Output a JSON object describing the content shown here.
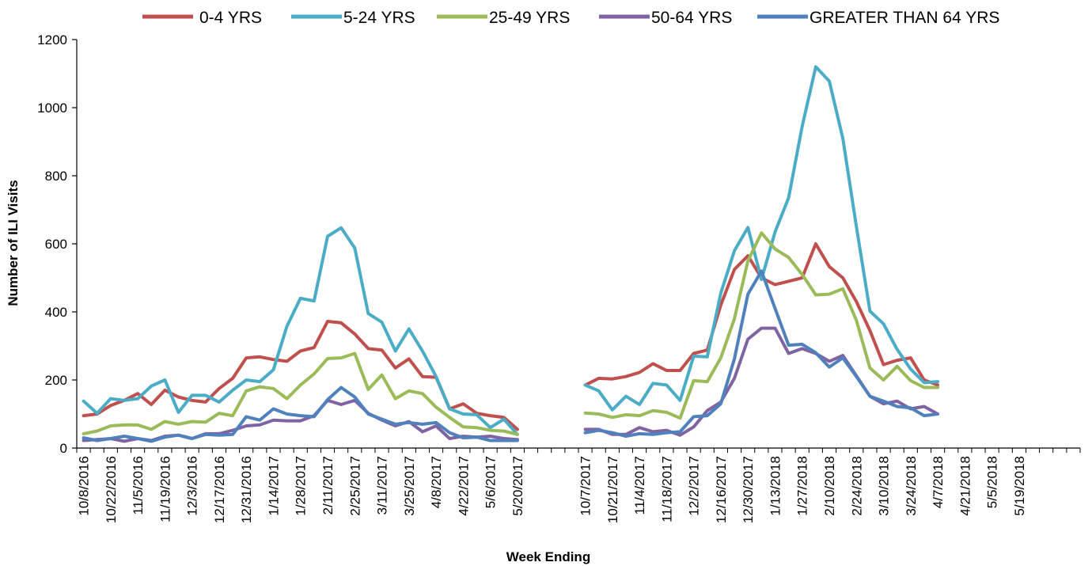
{
  "chart_data": {
    "type": "line",
    "title": "",
    "xlabel": "Week Ending",
    "ylabel": "Number of ILI Visits",
    "ylim": [
      0,
      1200
    ],
    "yticks": [
      0,
      200,
      400,
      600,
      800,
      1000,
      1200
    ],
    "grid": false,
    "legend_position": "top",
    "x_labels_2016": [
      "10/8/2016",
      "10/22/2016",
      "11/5/2016",
      "11/19/2016",
      "12/3/2016",
      "12/17/2016",
      "12/31/2016",
      "1/14/2017",
      "1/28/2017",
      "2/11/2017",
      "2/25/2017",
      "3/11/2017",
      "3/25/2017",
      "4/8/2017",
      "4/22/2017",
      "5/6/2017",
      "5/20/2017"
    ],
    "x_labels_2017": [
      "10/7/2017",
      "10/21/2017",
      "11/4/2017",
      "11/18/2017",
      "12/2/2017",
      "12/16/2017",
      "12/30/2017",
      "1/13/2018",
      "1/27/2018",
      "2/10/2018",
      "2/24/2018",
      "3/10/2018",
      "3/24/2018",
      "4/7/2018",
      "4/21/2018",
      "5/5/2018",
      "5/19/2018"
    ],
    "series": [
      {
        "name": "0-4 YRS",
        "color": "#c0504d",
        "season_2016": [
          95,
          100,
          125,
          140,
          160,
          128,
          170,
          150,
          140,
          135,
          175,
          205,
          265,
          268,
          260,
          255,
          285,
          295,
          372,
          368,
          335,
          292,
          288,
          235,
          262,
          210,
          208,
          115,
          130,
          102,
          95,
          90,
          55
        ],
        "season_2017": [
          185,
          205,
          203,
          210,
          222,
          248,
          228,
          228,
          278,
          288,
          420,
          525,
          565,
          500,
          480,
          490,
          500,
          600,
          533,
          500,
          430,
          345,
          245,
          258,
          265,
          200,
          185
        ]
      },
      {
        "name": "5-24 YRS",
        "color": "#4bacc6",
        "season_2016": [
          138,
          102,
          145,
          140,
          145,
          182,
          200,
          105,
          155,
          155,
          135,
          170,
          200,
          195,
          230,
          358,
          440,
          432,
          622,
          647,
          588,
          395,
          370,
          285,
          350,
          285,
          210,
          115,
          100,
          98,
          60,
          85,
          40
        ],
        "season_2017": [
          185,
          168,
          112,
          152,
          128,
          190,
          185,
          140,
          270,
          268,
          455,
          580,
          648,
          495,
          635,
          735,
          945,
          1120,
          1078,
          910,
          650,
          402,
          365,
          290,
          232,
          192,
          195
        ]
      },
      {
        "name": "25-49 YRS",
        "color": "#9bbb59",
        "season_2016": [
          42,
          50,
          65,
          68,
          68,
          55,
          78,
          70,
          78,
          76,
          102,
          95,
          168,
          180,
          175,
          145,
          185,
          218,
          263,
          265,
          278,
          172,
          215,
          145,
          168,
          160,
          120,
          90,
          62,
          60,
          52,
          50,
          40
        ],
        "season_2017": [
          103,
          100,
          90,
          98,
          95,
          110,
          105,
          88,
          198,
          195,
          265,
          380,
          550,
          632,
          585,
          560,
          510,
          450,
          452,
          468,
          375,
          235,
          200,
          240,
          198,
          178,
          178
        ]
      },
      {
        "name": "50-64 YRS",
        "color": "#8064a2",
        "season_2016": [
          22,
          25,
          28,
          20,
          28,
          22,
          35,
          38,
          28,
          42,
          42,
          52,
          65,
          68,
          82,
          80,
          80,
          95,
          140,
          128,
          140,
          102,
          82,
          65,
          78,
          48,
          65,
          28,
          35,
          32,
          35,
          28,
          25
        ],
        "season_2017": [
          55,
          55,
          40,
          40,
          60,
          48,
          52,
          38,
          62,
          110,
          135,
          205,
          320,
          352,
          352,
          278,
          292,
          278,
          255,
          272,
          212,
          152,
          130,
          138,
          115,
          122,
          100
        ]
      },
      {
        "name": "GREATER THAN 64 YRS",
        "color": "#4f81bd",
        "season_2016": [
          30,
          22,
          28,
          35,
          28,
          20,
          32,
          38,
          28,
          40,
          38,
          40,
          92,
          82,
          115,
          100,
          95,
          92,
          142,
          178,
          150,
          100,
          85,
          70,
          75,
          70,
          75,
          45,
          30,
          32,
          22,
          22,
          22
        ],
        "season_2017": [
          45,
          52,
          45,
          35,
          42,
          40,
          45,
          48,
          92,
          95,
          130,
          262,
          452,
          520,
          410,
          302,
          305,
          280,
          238,
          265,
          210,
          152,
          138,
          122,
          118,
          95,
          100
        ]
      }
    ]
  }
}
